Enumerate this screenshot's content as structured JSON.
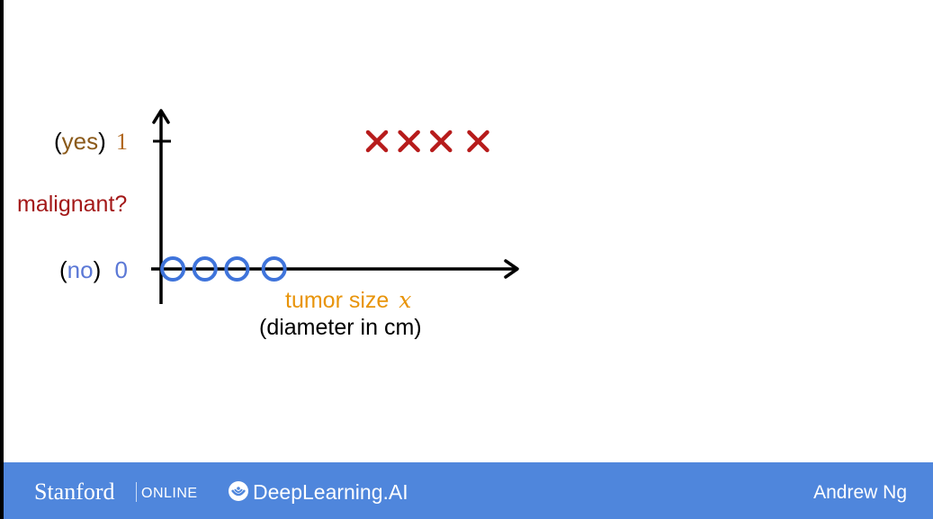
{
  "colors": {
    "background": "#ffffff",
    "axis": "#000000",
    "yes_word": "#8b5a1a",
    "no_word": "#5b78d6",
    "tick_one": "#b0661c",
    "tick_zero": "#5b78d6",
    "malignant": "#a31818",
    "circle_marker": "#3f74db",
    "cross_marker": "#b71c1c",
    "xlabel_main": "#e8940a",
    "xlabel_sub": "#000000",
    "footer_bg": "#4f86dc",
    "footer_text": "#ffffff"
  },
  "chart_data": {
    "type": "scatter",
    "title": "",
    "ylabel": "malignant?",
    "xlabel": "tumor size",
    "xlabel_variable": "x",
    "xlabel_sub": "(diameter in cm)",
    "y_ticks": [
      {
        "value": 1,
        "prefix": "(",
        "word": "yes",
        "suffix": ")",
        "label": "1"
      },
      {
        "value": 0,
        "prefix": "(",
        "word": "no",
        "suffix": ")",
        "label": "0"
      }
    ],
    "series": [
      {
        "marker": "circle",
        "color": "#3f74db",
        "points": [
          {
            "x": 0.35,
            "y": 0
          },
          {
            "x": 1.3,
            "y": 0
          },
          {
            "x": 2.25,
            "y": 0
          },
          {
            "x": 3.35,
            "y": 0
          }
        ]
      },
      {
        "marker": "x",
        "color": "#b71c1c",
        "points": [
          {
            "x": 6.4,
            "y": 1
          },
          {
            "x": 7.35,
            "y": 1
          },
          {
            "x": 8.3,
            "y": 1
          },
          {
            "x": 9.4,
            "y": 1
          }
        ]
      }
    ]
  },
  "footer": {
    "stanford": "Stanford",
    "online": "ONLINE",
    "deeplearning": "DeepLearning.AI",
    "presenter": "Andrew Ng"
  }
}
